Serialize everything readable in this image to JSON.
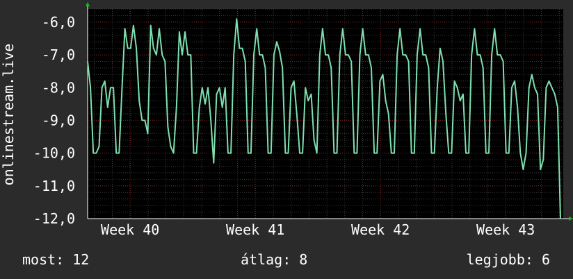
{
  "chart_data": {
    "type": "line",
    "ylabel": "onlinestream.live",
    "ylim": [
      -12,
      -5.6
    ],
    "y_ticks": [
      "-6,0",
      "-7,0",
      "-8,0",
      "-9,0",
      "-10,0",
      "-11,0",
      "-12,0"
    ],
    "y_tick_values": [
      -6,
      -7,
      -8,
      -9,
      -10,
      -11,
      -12
    ],
    "x_ticks": [
      "Week 40",
      "Week 41",
      "Week 42",
      "Week 43"
    ],
    "x_tick_positions": [
      1.0,
      2.0,
      3.0,
      4.0
    ],
    "xlim": [
      0.66,
      4.46
    ],
    "grid": true,
    "colors": {
      "background": "#2b2b2b",
      "plot_background": "#000000",
      "line": "#7ee0b0",
      "minor_grid": "#3a3a3a",
      "major_grid": "#7a2020",
      "axis_arrow": "#00cc00"
    },
    "series": [
      {
        "values": [
          -7.2,
          -8.0,
          -10.0,
          -10.0,
          -9.8,
          -8.0,
          -7.8,
          -8.6,
          -8.0,
          -8.0,
          -10.0,
          -10.0,
          -8.0,
          -6.2,
          -6.8,
          -6.8,
          -6.1,
          -6.8,
          -8.4,
          -9.0,
          -9.0,
          -9.4,
          -6.1,
          -6.8,
          -7.0,
          -6.2,
          -7.0,
          -7.2,
          -9.2,
          -9.8,
          -10.0,
          -8.6,
          -6.3,
          -7.0,
          -6.3,
          -7.0,
          -7.0,
          -10.0,
          -10.0,
          -8.6,
          -8.0,
          -8.5,
          -8.0,
          -9.0,
          -10.3,
          -8.2,
          -8.0,
          -8.6,
          -8.0,
          -10.0,
          -10.0,
          -7.0,
          -5.9,
          -6.8,
          -6.8,
          -7.2,
          -10.0,
          -10.0,
          -7.0,
          -6.2,
          -7.0,
          -7.0,
          -7.4,
          -10.0,
          -10.0,
          -7.0,
          -6.6,
          -6.9,
          -7.4,
          -10.0,
          -10.0,
          -8.0,
          -7.8,
          -8.8,
          -10.0,
          -10.0,
          -8.0,
          -8.4,
          -8.2,
          -9.6,
          -10.0,
          -7.0,
          -6.2,
          -7.0,
          -7.0,
          -7.4,
          -10.0,
          -10.0,
          -7.0,
          -6.2,
          -7.0,
          -7.0,
          -7.2,
          -10.0,
          -10.0,
          -7.0,
          -6.2,
          -7.0,
          -7.0,
          -7.4,
          -10.0,
          -10.0,
          -7.8,
          -7.6,
          -8.4,
          -8.8,
          -10.0,
          -10.0,
          -7.0,
          -6.2,
          -7.0,
          -7.0,
          -7.2,
          -10.0,
          -10.0,
          -7.0,
          -6.2,
          -7.0,
          -7.0,
          -7.4,
          -10.0,
          -10.0,
          -8.0,
          -6.8,
          -7.2,
          -8.8,
          -10.0,
          -10.0,
          -7.8,
          -8.0,
          -8.4,
          -8.2,
          -10.0,
          -10.0,
          -7.0,
          -6.2,
          -7.0,
          -7.0,
          -7.4,
          -10.0,
          -10.0,
          -7.0,
          -6.2,
          -7.0,
          -7.0,
          -7.2,
          -10.0,
          -10.0,
          -8.0,
          -7.8,
          -8.6,
          -10.0,
          -10.5,
          -10.0,
          -8.0,
          -7.6,
          -8.0,
          -8.2,
          -10.5,
          -10.2,
          -8.0,
          -7.8,
          -8.0,
          -8.2,
          -8.6,
          -12.0
        ]
      }
    ]
  },
  "footer": {
    "current": "most: 12",
    "average": "átlag: 8",
    "best": "legjobb: 6"
  }
}
